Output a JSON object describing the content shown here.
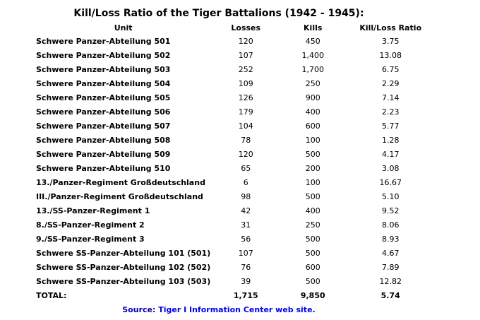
{
  "title": "Kill/Loss Ratio of the Tiger Battalions (1942 - 1945):",
  "headers": {
    "unit": "Unit",
    "losses": "Losses",
    "kills": "Kills",
    "ratio": "Kill/Loss Ratio"
  },
  "rows": [
    {
      "unit": "Schwere Panzer-Abteilung 501",
      "losses": "120",
      "kills": "450",
      "ratio": "3.75"
    },
    {
      "unit": "Schwere Panzer-Abteilung 502",
      "losses": "107",
      "kills": "1,400",
      "ratio": "13.08"
    },
    {
      "unit": "Schwere Panzer-Abteilung 503",
      "losses": "252",
      "kills": "1,700",
      "ratio": "6.75"
    },
    {
      "unit": "Schwere Panzer-Abteilung 504",
      "losses": "109",
      "kills": "250",
      "ratio": "2.29"
    },
    {
      "unit": "Schwere Panzer-Abteilung 505",
      "losses": "126",
      "kills": "900",
      "ratio": "7.14"
    },
    {
      "unit": "Schwere Panzer-Abteilung 506",
      "losses": "179",
      "kills": "400",
      "ratio": "2.23"
    },
    {
      "unit": "Schwere Panzer-Abteilung 507",
      "losses": "104",
      "kills": "600",
      "ratio": "5.77"
    },
    {
      "unit": "Schwere Panzer-Abteilung 508",
      "losses": "78",
      "kills": "100",
      "ratio": "1.28"
    },
    {
      "unit": "Schwere Panzer-Abteilung 509",
      "losses": "120",
      "kills": "500",
      "ratio": "4.17"
    },
    {
      "unit": "Schwere Panzer-Abteilung 510",
      "losses": "65",
      "kills": "200",
      "ratio": "3.08"
    },
    {
      "unit": "13./Panzer-Regiment Großdeutschland",
      "losses": "6",
      "kills": "100",
      "ratio": "16.67"
    },
    {
      "unit": "III./Panzer-Regiment Großdeutschland",
      "losses": "98",
      "kills": "500",
      "ratio": "5.10"
    },
    {
      "unit": "13./SS-Panzer-Regiment 1",
      "losses": "42",
      "kills": "400",
      "ratio": "9.52"
    },
    {
      "unit": "8./SS-Panzer-Regiment 2",
      "losses": "31",
      "kills": "250",
      "ratio": "8.06"
    },
    {
      "unit": "9./SS-Panzer-Regiment 3",
      "losses": "56",
      "kills": "500",
      "ratio": "8.93"
    },
    {
      "unit": "Schwere SS-Panzer-Abteilung 101 (501)",
      "losses": "107",
      "kills": "500",
      "ratio": "4.67"
    },
    {
      "unit": "Schwere SS-Panzer-Abteilung 102 (502)",
      "losses": "76",
      "kills": "600",
      "ratio": "7.89"
    },
    {
      "unit": "Schwere SS-Panzer-Abteilung 103 (503)",
      "losses": "39",
      "kills": "500",
      "ratio": "12.82"
    }
  ],
  "total": {
    "label": "TOTAL:",
    "losses": "1,715",
    "kills": "9,850",
    "ratio": "5.74"
  },
  "source": {
    "prefix": "Source: ",
    "link_text": "Tiger I Information Center web site",
    "suffix": ".",
    "link_color": "#0000ee",
    "text_color": "#0000aa"
  }
}
